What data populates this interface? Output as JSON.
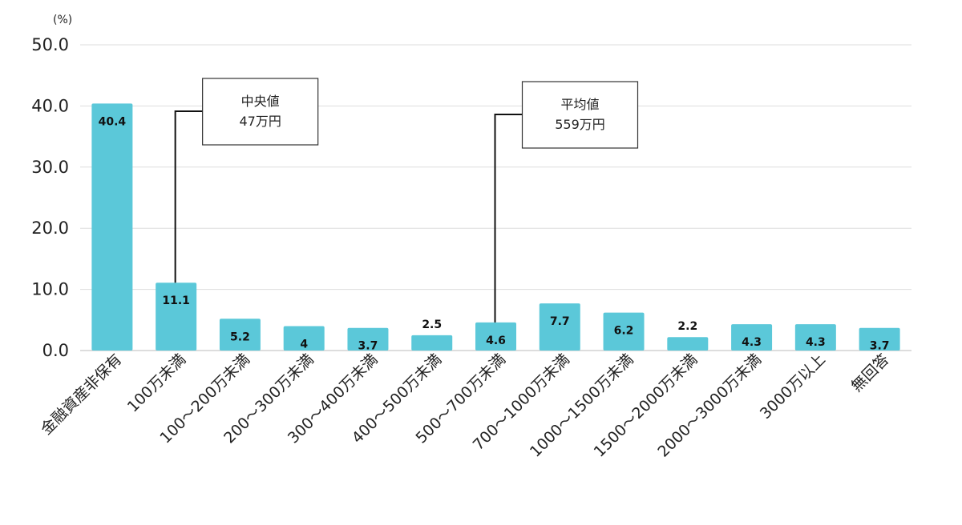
{
  "chart_data": {
    "type": "bar",
    "ylabel": "(%)",
    "ylim": [
      0,
      50
    ],
    "yticks": [
      "0.0",
      "10.0",
      "20.0",
      "30.0",
      "40.0",
      "50.0"
    ],
    "grid": true,
    "categories": [
      "金融資産非保有",
      "100万未満",
      "100～200万未満",
      "200～300万未満",
      "300～400万未満",
      "400～500万未満",
      "500～700万未満",
      "700～1000万未満",
      "1000～1500万未満",
      "1500～2000万未満",
      "2000～3000万未満",
      "3000万以上",
      "無回答"
    ],
    "values": [
      40.4,
      11.1,
      5.2,
      4,
      3.7,
      2.5,
      4.6,
      7.7,
      6.2,
      2.2,
      4.3,
      4.3,
      3.7
    ],
    "value_labels": [
      "40.4",
      "11.1",
      "5.2",
      "4",
      "3.7",
      "2.5",
      "4.6",
      "7.7",
      "6.2",
      "2.2",
      "4.3",
      "4.3",
      "3.7"
    ],
    "bar_color": "#5bc8d9",
    "annotations": [
      {
        "category_index": 1,
        "lines": [
          "中央値",
          "47万円"
        ]
      },
      {
        "category_index": 6,
        "lines": [
          "平均値",
          "559万円"
        ]
      }
    ]
  }
}
